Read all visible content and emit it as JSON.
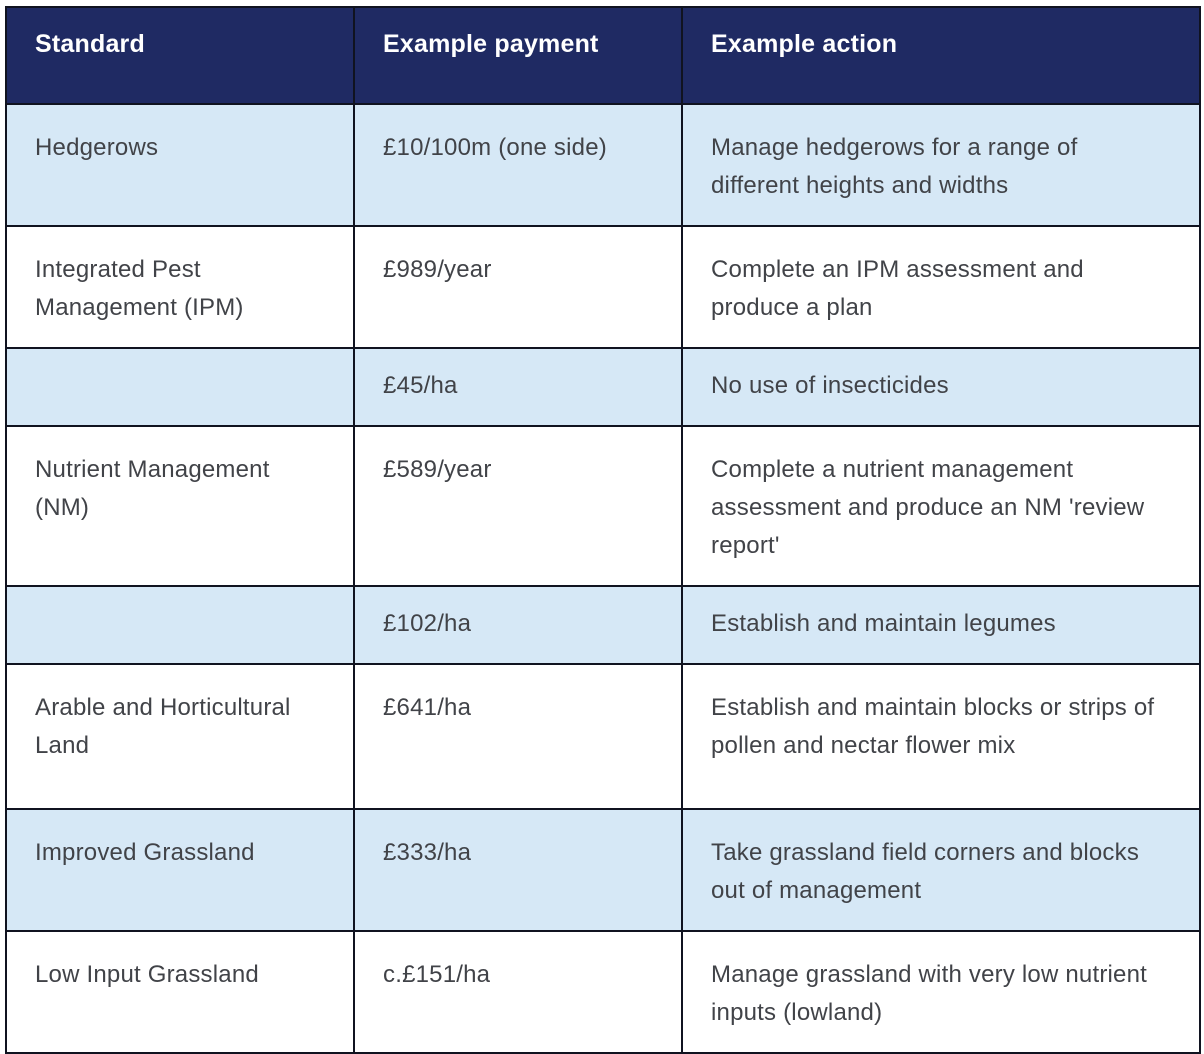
{
  "table": {
    "columns": [
      "Standard",
      "Example payment",
      "Example action"
    ],
    "rows": [
      {
        "standard": "Hedgerows",
        "payment": "£10/100m (one side)",
        "action": "Manage hedgerows for a range of different heights and widths"
      },
      {
        "standard": "Integrated Pest Management (IPM)",
        "payment": "£989/year",
        "action": "Complete an IPM assessment and produce a plan"
      },
      {
        "standard": "",
        "payment": "£45/ha",
        "action": "No use of insecticides"
      },
      {
        "standard": "Nutrient Management (NM)",
        "payment": "£589/year",
        "action": "Complete a nutrient management assessment and produce an NM 'review report'"
      },
      {
        "standard": "",
        "payment": "£102/ha",
        "action": "Establish and maintain legumes"
      },
      {
        "standard": "Arable and Horticultural Land",
        "payment": "£641/ha",
        "action": "Establish and maintain blocks or strips of pollen and nectar flower mix"
      },
      {
        "standard": "Improved Grassland",
        "payment": "£333/ha",
        "action": "Take grassland field corners and blocks out of management"
      },
      {
        "standard": "Low Input Grassland",
        "payment": "c.£151/ha",
        "action": "Manage grassland with very low nutrient inputs (lowland)"
      }
    ]
  },
  "colors": {
    "header_background": "#1f2a63",
    "header_text": "#ffffff",
    "row_stripe_background": "#d6e8f6",
    "row_plain_background": "#ffffff",
    "body_text": "#414348",
    "grid_border": "#101320"
  }
}
